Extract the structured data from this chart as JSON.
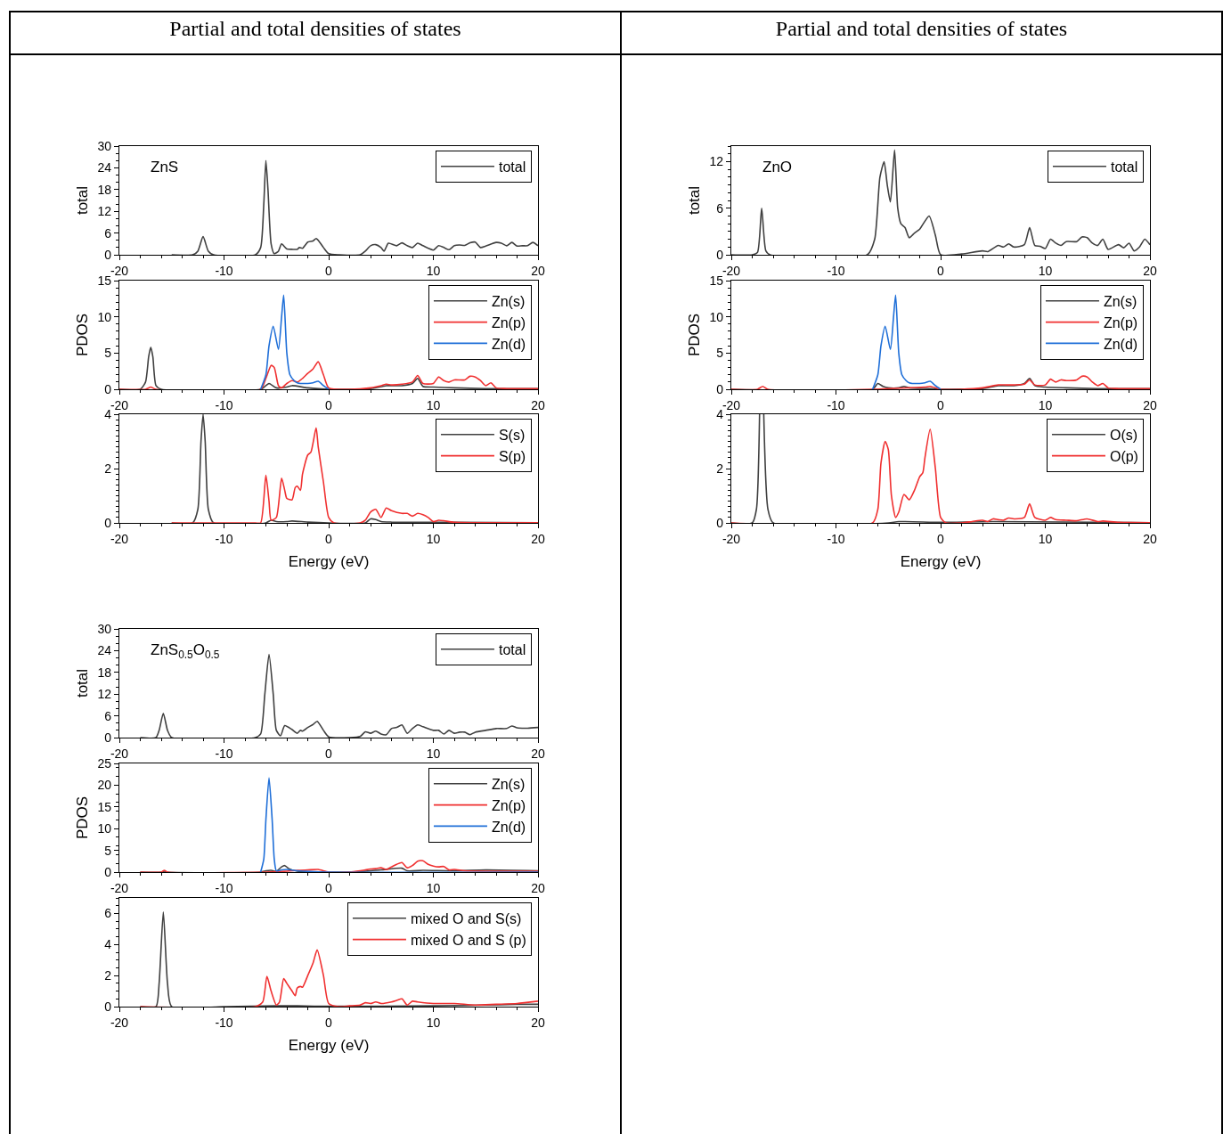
{
  "chart_data": [
    {
      "type": "line",
      "title": "Partial and total densities of states",
      "ylabel": "total",
      "annotations": [
        "ZnS"
      ],
      "xlim": [
        -20,
        20
      ],
      "xticks": [
        -20,
        -10,
        0,
        10,
        20
      ],
      "ylim": [
        0,
        30
      ],
      "yticks": [
        0,
        6,
        12,
        18,
        24,
        30
      ],
      "legend": "top right",
      "series": [
        {
          "name": "total",
          "color": "#404040",
          "x": [
            -15,
            -13,
            -12.5,
            -12,
            -11.5,
            -11,
            -7,
            -6.5,
            -6.2,
            -6,
            -5.8,
            -5.5,
            -5.2,
            -4.8,
            -4.5,
            -4,
            -3.5,
            -3,
            -2.8,
            -2.5,
            -2,
            -1.5,
            -1.2,
            -1,
            -0.5,
            0,
            1,
            3,
            3.5,
            4,
            4.5,
            5,
            5.3,
            5.7,
            6.5,
            7,
            7.5,
            8,
            8.5,
            9,
            10,
            10.5,
            11,
            11.5,
            12,
            12.5,
            13,
            13.5,
            14,
            14.5,
            15,
            16,
            16.5,
            17,
            17.5,
            18,
            18.5,
            19,
            19.5,
            20
          ],
          "values": [
            0,
            0,
            1,
            5,
            1,
            0,
            0,
            2,
            14,
            26,
            18,
            3,
            0.3,
            1,
            3,
            1.6,
            1.5,
            1.5,
            2,
            1.8,
            3.5,
            3.8,
            4.5,
            4,
            2,
            0.3,
            0,
            0,
            1,
            2.5,
            2.8,
            2,
            1,
            3.2,
            2.5,
            3.3,
            2.5,
            2,
            3.2,
            2.5,
            1.3,
            2.5,
            2,
            1.4,
            2.5,
            2.7,
            2.6,
            3.3,
            3.5,
            2,
            2.4,
            3.4,
            3.2,
            2.5,
            3.4,
            2.4,
            2.5,
            2.5,
            3.4,
            2.5
          ]
        }
      ]
    },
    {
      "type": "line",
      "ylabel": "PDOS",
      "xlim": [
        -20,
        20
      ],
      "xticks": [
        -20,
        -10,
        0,
        10,
        20
      ],
      "ylim": [
        0,
        15
      ],
      "yticks": [
        0,
        5,
        10,
        15
      ],
      "legend": "top right",
      "series": [
        {
          "name": "Zn(s)",
          "color": "#404040",
          "x": [
            -20,
            -18,
            -17.5,
            -17.2,
            -17,
            -16.8,
            -16.5,
            -16,
            -6.5,
            -6,
            -5.7,
            -5,
            -4,
            -3.5,
            -2,
            0,
            4,
            5.5,
            7,
            8,
            8.5,
            9,
            10,
            12,
            15,
            20
          ],
          "values": [
            0,
            0,
            1,
            4.5,
            5.8,
            4.5,
            0.5,
            0,
            0,
            0.5,
            0.8,
            0.2,
            0.3,
            0.5,
            0.2,
            0,
            0.1,
            0.5,
            0.5,
            0.8,
            1.5,
            0.4,
            0.3,
            0.2,
            0.1,
            0.1
          ]
        },
        {
          "name": "Zn(p)",
          "color": "#f03030",
          "x": [
            -20,
            -17.5,
            -17,
            -16.5,
            -6.5,
            -6,
            -5.5,
            -5.2,
            -4.8,
            -4.5,
            -4,
            -3.5,
            -3,
            -2.5,
            -2,
            -1.5,
            -1,
            -0.5,
            0,
            2,
            4,
            5,
            5.5,
            6,
            7,
            8,
            8.5,
            9,
            10,
            10.5,
            11,
            11.5,
            12,
            13,
            13.5,
            14,
            14.5,
            15,
            15.5,
            16,
            17,
            20
          ],
          "values": [
            0,
            0,
            0.3,
            0,
            0,
            1.5,
            3.3,
            3,
            0.5,
            0.2,
            0.8,
            1.2,
            1,
            1.5,
            2.2,
            2.8,
            3.8,
            2,
            0.2,
            0,
            0.2,
            0.5,
            0.7,
            0.6,
            0.7,
            1,
            1.9,
            0.8,
            0.8,
            1.7,
            1.2,
            1,
            1.3,
            1.3,
            1.8,
            1.7,
            1.2,
            0.5,
            0.9,
            0.2,
            0.1,
            0.1
          ]
        },
        {
          "name": "Zn(d)",
          "color": "#1f6fd8",
          "x": [
            -6.5,
            -6,
            -5.7,
            -5.3,
            -4.8,
            -4.5,
            -4.3,
            -4,
            -3.7,
            -3.3,
            -3,
            -2,
            -1.5,
            -1,
            -0.5,
            0
          ],
          "values": [
            0,
            2,
            6,
            8.7,
            5.5,
            10,
            13,
            5,
            2,
            1.2,
            0.9,
            0.8,
            0.9,
            1.1,
            0.5,
            0
          ]
        }
      ]
    },
    {
      "type": "line",
      "xlabel": "Energy (eV)",
      "xlim": [
        -20,
        20
      ],
      "xticks": [
        -20,
        -10,
        0,
        10,
        20
      ],
      "ylim": [
        0,
        4
      ],
      "yticks": [
        0,
        2,
        4
      ],
      "legend": "top right",
      "series": [
        {
          "name": "S(s)",
          "color": "#404040",
          "x": [
            -15,
            -13,
            -12.5,
            -12.2,
            -12,
            -11.8,
            -11.5,
            -11,
            -6,
            -5.5,
            -5,
            -4,
            -3.5,
            -2,
            0,
            3.5,
            4,
            4.5,
            5,
            6,
            20
          ],
          "values": [
            0,
            0,
            0.5,
            3,
            4,
            3,
            0.5,
            0,
            0,
            0.1,
            0.05,
            0.05,
            0.07,
            0.03,
            0,
            0,
            0.15,
            0.12,
            0.05,
            0.03,
            0.01
          ]
        },
        {
          "name": "S(p)",
          "color": "#f03030",
          "x": [
            -15,
            -7,
            -6.5,
            -6,
            -5.7,
            -5.5,
            -5,
            -4.5,
            -4.2,
            -4,
            -3.5,
            -3.2,
            -3,
            -2.7,
            -2.5,
            -2,
            -1.7,
            -1.2,
            -1,
            -0.5,
            0,
            0.5,
            3,
            3.5,
            4,
            4.5,
            5,
            5.5,
            6,
            7,
            7.5,
            8,
            8.5,
            9,
            9.5,
            10,
            10.5,
            11,
            12,
            20
          ],
          "values": [
            0,
            0,
            0,
            1.75,
            0.8,
            0.1,
            0.2,
            1.65,
            1.2,
            0.9,
            0.85,
            1.3,
            1.35,
            1.2,
            1.8,
            2.5,
            2.6,
            3.5,
            2.8,
            1.5,
            0.2,
            0,
            0,
            0.1,
            0.4,
            0.5,
            0.2,
            0.55,
            0.45,
            0.35,
            0.35,
            0.25,
            0.35,
            0.3,
            0.2,
            0.05,
            0.1,
            0.08,
            0.02,
            0.01
          ]
        }
      ]
    },
    {
      "type": "line",
      "title": "Partial and total densities of states",
      "ylabel": "total",
      "annotations": [
        "ZnO"
      ],
      "xlim": [
        -20,
        20
      ],
      "xticks": [
        -20,
        -10,
        0,
        10,
        20
      ],
      "ylim": [
        0,
        14
      ],
      "yticks": [
        0,
        6,
        12
      ],
      "legend": "top right",
      "series": [
        {
          "name": "total",
          "color": "#404040",
          "x": [
            -20,
            -18,
            -17.5,
            -17.1,
            -16.7,
            -16.3,
            -7,
            -6.3,
            -5.8,
            -5.4,
            -5.1,
            -4.8,
            -4.4,
            -4.1,
            -3.8,
            -3.4,
            -3,
            -2.5,
            -2,
            -1.1,
            -0.5,
            0,
            2,
            4,
            4.5,
            5.5,
            6,
            6.5,
            7,
            8,
            8.5,
            9,
            9.5,
            10,
            10.5,
            11,
            11.5,
            12,
            13,
            13.5,
            14,
            14.5,
            15,
            15.5,
            16,
            17,
            17.5,
            18,
            18.5,
            19,
            19.5,
            20
          ],
          "values": [
            0,
            0,
            0.3,
            6,
            0.5,
            0,
            0,
            2,
            10,
            12,
            9,
            6.8,
            13.5,
            6,
            4,
            3.5,
            2.2,
            2.8,
            3.3,
            5,
            2.5,
            0,
            0.1,
            0.5,
            0.4,
            1.2,
            1,
            1.4,
            1,
            1.3,
            3.5,
            1.2,
            1.1,
            0.8,
            2,
            1.5,
            1.2,
            1.7,
            1.7,
            2.3,
            2.2,
            1.5,
            1.2,
            2,
            0.7,
            1.3,
            0.9,
            1.5,
            0.5,
            1,
            2,
            1.3
          ]
        }
      ]
    },
    {
      "type": "line",
      "ylabel": "PDOS",
      "xlim": [
        -20,
        20
      ],
      "xticks": [
        -20,
        -10,
        0,
        10,
        20
      ],
      "ylim": [
        0,
        15
      ],
      "yticks": [
        0,
        5,
        10,
        15
      ],
      "legend": "top right",
      "series": [
        {
          "name": "Zn(s)",
          "color": "#404040",
          "x": [
            -20,
            -6.5,
            -6,
            -5.5,
            -5,
            -4,
            -3.5,
            -3,
            -1,
            0,
            4,
            5.5,
            7,
            8,
            8.5,
            9,
            10,
            12,
            15,
            20
          ],
          "values": [
            0,
            0,
            0.8,
            0.4,
            0.2,
            0.2,
            0.4,
            0.2,
            0.1,
            0,
            0.1,
            0.5,
            0.5,
            0.8,
            1.5,
            0.5,
            0.3,
            0.2,
            0.1,
            0.1
          ]
        },
        {
          "name": "Zn(p)",
          "color": "#f03030",
          "x": [
            -20,
            -17.5,
            -17,
            -16.5,
            -6.5,
            -5,
            -3,
            -1.5,
            -1,
            0,
            2,
            4,
            5.5,
            7,
            8,
            8.5,
            9,
            10,
            10.5,
            11,
            11.5,
            12,
            13,
            13.5,
            14,
            14.5,
            15,
            15.5,
            16,
            17,
            20
          ],
          "values": [
            0,
            0,
            0.4,
            0,
            0,
            0.1,
            0.2,
            0.3,
            0.4,
            0,
            0,
            0.2,
            0.6,
            0.6,
            0.7,
            1.3,
            0.6,
            0.6,
            1.4,
            1,
            1.3,
            1.2,
            1.3,
            1.8,
            1.7,
            1,
            0.5,
            0.8,
            0.2,
            0.1,
            0.1
          ]
        },
        {
          "name": "Zn(d)",
          "color": "#1f6fd8",
          "x": [
            -6.5,
            -6,
            -5.7,
            -5.3,
            -4.8,
            -4.5,
            -4.3,
            -4,
            -3.7,
            -3.3,
            -3,
            -2,
            -1.5,
            -1,
            -0.5,
            0
          ],
          "values": [
            0,
            2,
            6,
            8.7,
            5.5,
            10,
            13,
            5,
            2,
            1.2,
            0.9,
            0.8,
            0.9,
            1.1,
            0.5,
            0
          ]
        }
      ]
    },
    {
      "type": "line",
      "xlabel": "Energy (eV)",
      "xlim": [
        -20,
        20
      ],
      "xticks": [
        -20,
        -10,
        0,
        10,
        20
      ],
      "ylim": [
        0,
        4
      ],
      "yticks": [
        0,
        2,
        4
      ],
      "legend": "top right",
      "series": [
        {
          "name": "O(s)",
          "color": "#404040",
          "x": [
            -20,
            -18,
            -17.6,
            -17.3,
            -17.1,
            -16.9,
            -16.5,
            -16,
            -5,
            -4,
            0,
            5,
            20
          ],
          "values": [
            0,
            0,
            0.5,
            4,
            null,
            4,
            0.5,
            0,
            0,
            0.05,
            0.02,
            0.05,
            0.01
          ]
        },
        {
          "name": "O(p)",
          "color": "#f03030",
          "x": [
            -20,
            -6.5,
            -6,
            -5.7,
            -5.3,
            -5,
            -4.7,
            -4.3,
            -4,
            -3.5,
            -3,
            -2.5,
            -2,
            -1.7,
            -1.5,
            -1,
            -0.5,
            0,
            0.5,
            2,
            3,
            4,
            4.5,
            5,
            5.5,
            6,
            6.5,
            7,
            8,
            8.5,
            9,
            10,
            10.5,
            11,
            12,
            13,
            14,
            15,
            15.5,
            17,
            20
          ],
          "values": [
            0,
            0,
            0.5,
            2.2,
            3,
            2.7,
            1,
            0.2,
            0.4,
            1.05,
            0.85,
            1.2,
            1.7,
            1.85,
            2.4,
            3.45,
            2,
            0.2,
            0,
            0,
            0.05,
            0.1,
            0.05,
            0.15,
            0.12,
            0.1,
            0.18,
            0.15,
            0.2,
            0.7,
            0.2,
            0.1,
            0.2,
            0.12,
            0.1,
            0.08,
            0.15,
            0.05,
            0.07,
            0.02,
            0.01
          ]
        }
      ]
    },
    {
      "type": "line",
      "ylabel": "total",
      "annotations": [
        "ZnS$_{0.5}$O$_{0.5}$"
      ],
      "xlim": [
        -20,
        20
      ],
      "xticks": [
        -20,
        -10,
        0,
        10,
        20
      ],
      "ylim": [
        0,
        30
      ],
      "yticks": [
        0,
        6,
        12,
        18,
        24,
        30
      ],
      "legend": "top right",
      "series": [
        {
          "name": "total",
          "color": "#404040",
          "x": [
            -18,
            -16.5,
            -16.2,
            -15.8,
            -15.4,
            -15,
            -7,
            -6.5,
            -6.1,
            -5.7,
            -5.3,
            -5,
            -4.6,
            -4.2,
            -3.5,
            -3,
            -2.7,
            -2.5,
            -2,
            -1.5,
            -1.1,
            -0.5,
            0,
            2,
            3,
            3.5,
            4,
            4.5,
            5,
            5.5,
            6,
            6.5,
            7,
            7.5,
            8,
            8.5,
            9,
            10,
            10.5,
            11,
            11.5,
            12,
            12.5,
            13,
            13.5,
            14,
            15,
            16,
            17,
            17.5,
            18,
            19,
            20
          ],
          "values": [
            0,
            0,
            2,
            6.7,
            2,
            0,
            0,
            1,
            12,
            23,
            12,
            2,
            0.5,
            3.3,
            2.2,
            1.2,
            2,
            1.8,
            2.8,
            3.6,
            4.5,
            2,
            0.2,
            0,
            0.3,
            1.6,
            1.2,
            1.8,
            1,
            0.8,
            2.5,
            2.8,
            3.5,
            1.2,
            2.5,
            3.5,
            3,
            2,
            2,
            1,
            2,
            1.2,
            1.5,
            1.5,
            0.8,
            1.5,
            2,
            2.5,
            2.5,
            3.2,
            2.7,
            2.6,
            2.8
          ]
        }
      ]
    },
    {
      "type": "line",
      "ylabel": "PDOS",
      "xlim": [
        -20,
        20
      ],
      "xticks": [
        -20,
        -10,
        0,
        10,
        20
      ],
      "ylim": [
        0,
        25
      ],
      "yticks": [
        0,
        5,
        10,
        15,
        20,
        25
      ],
      "legend": "top right",
      "series": [
        {
          "name": "Zn(s)",
          "color": "#404040",
          "x": [
            -18,
            -16,
            -15.7,
            -15.4,
            -6.5,
            -6,
            -5.5,
            -5,
            -4.5,
            -4.2,
            -3.8,
            -3,
            0,
            3,
            5,
            7,
            7.5,
            9,
            12,
            15,
            20
          ],
          "values": [
            0,
            0,
            0.2,
            0,
            0,
            0.3,
            0.4,
            0.2,
            1.2,
            1.5,
            0.8,
            0.2,
            0,
            0.1,
            0.5,
            0.9,
            0.3,
            0.4,
            0.3,
            0.5,
            0.3
          ]
        },
        {
          "name": "Zn(p)",
          "color": "#f03030",
          "x": [
            -18,
            -16,
            -15.7,
            -15.4,
            -6,
            -4,
            -3,
            -2,
            -1,
            0,
            2,
            3,
            3.5,
            4,
            4.5,
            5,
            5.5,
            6,
            6.5,
            7,
            7.5,
            8,
            8.5,
            9,
            9.5,
            10,
            10.5,
            11,
            11.5,
            12,
            13,
            15,
            20
          ],
          "values": [
            0,
            0,
            0.4,
            0,
            0,
            0.2,
            0.4,
            0.5,
            0.6,
            0,
            0,
            0.3,
            0.5,
            0.7,
            0.8,
            1,
            0.6,
            1.2,
            1.8,
            2.2,
            1,
            1.5,
            2.5,
            2.6,
            1.8,
            1.4,
            1.2,
            1.3,
            0.5,
            0.6,
            0.3,
            0.2,
            0.2
          ]
        },
        {
          "name": "Zn(d)",
          "color": "#1f6fd8",
          "x": [
            -6.5,
            -6.2,
            -6,
            -5.7,
            -5.4,
            -5.2,
            -5,
            -4.5,
            -4,
            -3,
            0,
            20
          ],
          "values": [
            0,
            3,
            12,
            21.7,
            12,
            3,
            0.3,
            0.5,
            0.6,
            0.3,
            0,
            0
          ]
        }
      ]
    },
    {
      "type": "line",
      "xlabel": "Energy (eV)",
      "xlim": [
        -20,
        20
      ],
      "xticks": [
        -20,
        -10,
        0,
        10,
        20
      ],
      "ylim": [
        0,
        7
      ],
      "yticks": [
        0,
        2,
        4,
        6
      ],
      "legend": "top right",
      "series": [
        {
          "name": "mixed O and S(s)",
          "color": "#404040",
          "x": [
            -18,
            -16.5,
            -16.2,
            -15.8,
            -15.4,
            -15,
            -10,
            -5,
            -3,
            0,
            10,
            15,
            18,
            20
          ],
          "values": [
            0,
            0,
            1.5,
            6.1,
            1.5,
            0,
            0,
            0.05,
            0.05,
            0.02,
            0.05,
            0.1,
            0.15,
            0.15
          ]
        },
        {
          "name": "mixed O and S (p)",
          "color": "#f03030",
          "x": [
            -18,
            -7,
            -6.3,
            -5.9,
            -5.5,
            -5,
            -4.7,
            -4.3,
            -4,
            -3.5,
            -3.2,
            -3,
            -2.7,
            -2.5,
            -2,
            -1.5,
            -1.1,
            -0.5,
            0,
            1,
            2,
            3,
            3.5,
            4,
            4.5,
            5,
            6,
            6.5,
            7,
            7.5,
            8,
            8.5,
            10,
            12,
            14,
            16,
            18,
            20
          ],
          "values": [
            0,
            0,
            0.3,
            1.95,
            1,
            0.1,
            0.3,
            1.8,
            1.5,
            1.0,
            0.7,
            1.2,
            1.3,
            1.25,
            2,
            2.8,
            3.65,
            2,
            0.2,
            0,
            0.05,
            0.1,
            0.25,
            0.2,
            0.3,
            0.2,
            0.3,
            0.4,
            0.5,
            0.1,
            0.35,
            0.3,
            0.2,
            0.2,
            0.1,
            0.15,
            0.2,
            0.35
          ]
        }
      ]
    }
  ]
}
